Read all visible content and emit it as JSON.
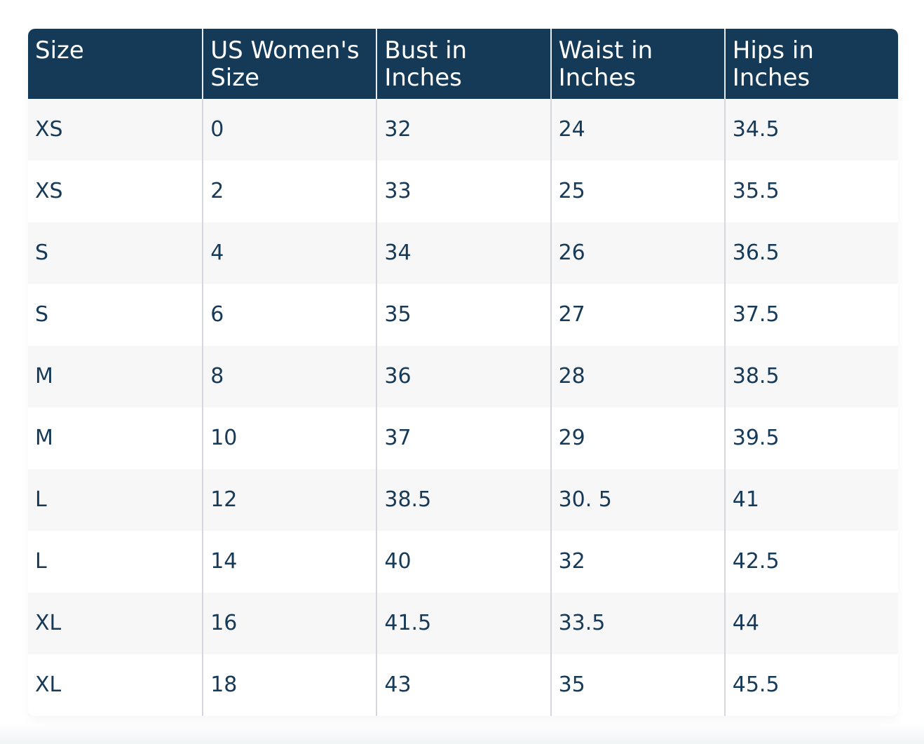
{
  "table": {
    "header": [
      "Size",
      "US Women's Size",
      "Bust in Inches",
      "Waist in Inches",
      "Hips in Inches"
    ],
    "rows": [
      [
        "XS",
        "0",
        "32",
        "24",
        "34.5"
      ],
      [
        "XS",
        "2",
        "33",
        "25",
        "35.5"
      ],
      [
        "S",
        "4",
        "34",
        "26",
        "36.5"
      ],
      [
        "S",
        "6",
        "35",
        "27",
        "37.5"
      ],
      [
        "M",
        "8",
        "36",
        "28",
        "38.5"
      ],
      [
        "M",
        "10",
        "37",
        "29",
        "39.5"
      ],
      [
        "L",
        "12",
        "38.5",
        "30. 5",
        "41"
      ],
      [
        "L",
        "14",
        "40",
        "32",
        "42.5"
      ],
      [
        "XL",
        "16",
        "41.5",
        "33.5",
        "44"
      ],
      [
        "XL",
        "18",
        "43",
        "35",
        "45.5"
      ]
    ]
  }
}
